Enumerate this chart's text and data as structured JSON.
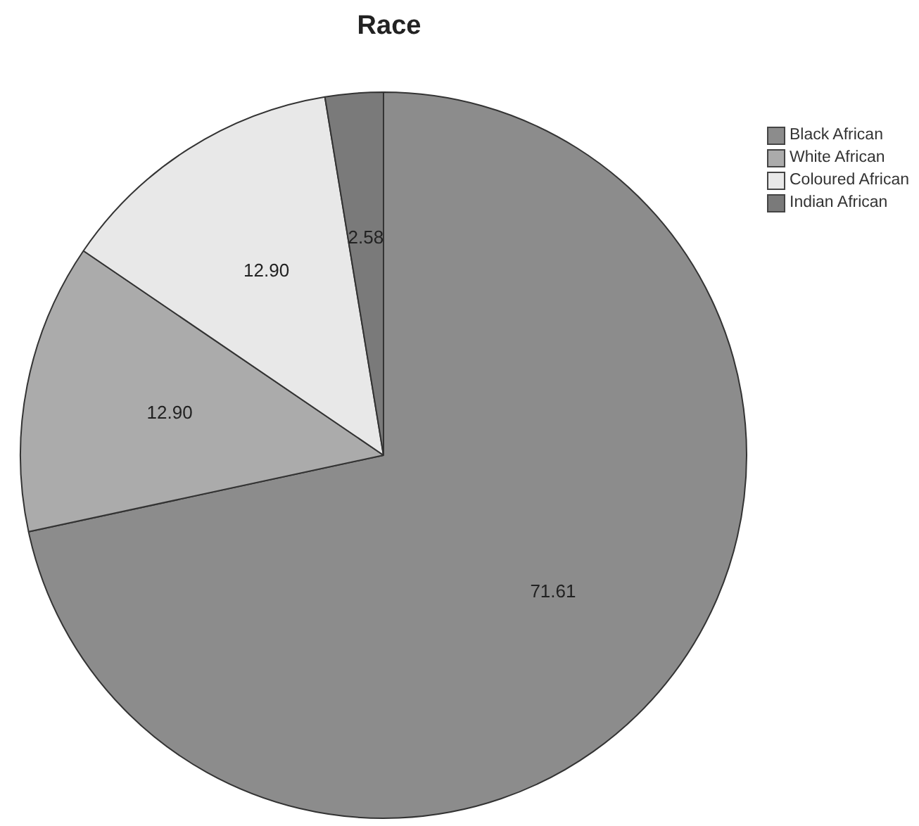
{
  "chart_data": {
    "type": "pie",
    "title": "Race",
    "categories": [
      "Black African",
      "White African",
      "Coloured African",
      "Indian African"
    ],
    "values": [
      71.61,
      12.9,
      12.9,
      2.58
    ],
    "value_labels": [
      "71.61",
      "12.90",
      "12.90",
      "2.58"
    ],
    "colors": [
      "#8c8c8c",
      "#ababab",
      "#e8e8e8",
      "#7a7a7a"
    ],
    "legend": "top right"
  }
}
